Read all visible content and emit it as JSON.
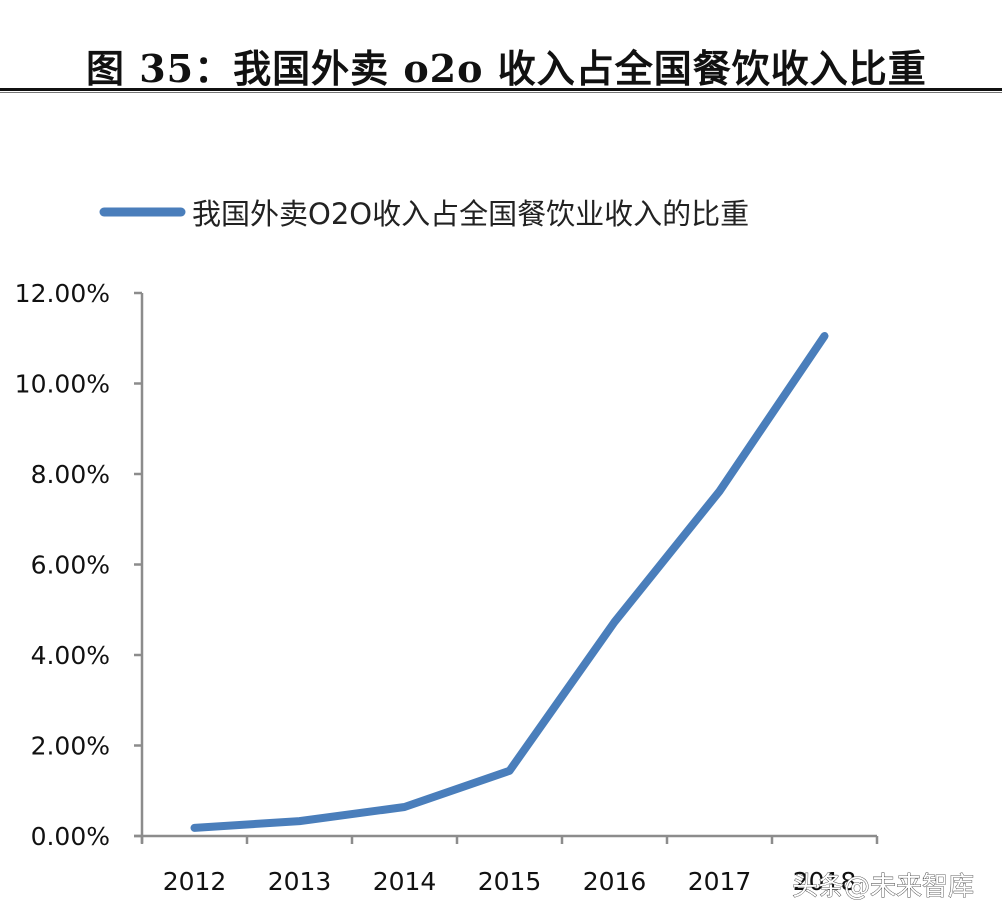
{
  "figure": {
    "title": "图 35：我国外卖 o2o 收入占全国餐饮收入比重"
  },
  "watermark": "头条@未来智库",
  "colors": {
    "series": "#4A7EBB",
    "axis": "#8C8C8C",
    "text": "#111111"
  },
  "chart_data": {
    "type": "line",
    "title": "图 35：我国外卖 o2o 收入占全国餐饮收入比重",
    "xlabel": "",
    "ylabel": "",
    "categories": [
      "2012",
      "2013",
      "2014",
      "2015",
      "2016",
      "2017",
      "2018"
    ],
    "series": [
      {
        "name": "我国外卖O2O收入占全国餐饮业收入的比重",
        "values": [
          0.18,
          0.33,
          0.64,
          1.44,
          4.73,
          7.62,
          11.05
        ],
        "unit": "%"
      }
    ],
    "ylim": [
      0,
      12
    ],
    "yticks": [
      0,
      2,
      4,
      6,
      8,
      10,
      12
    ],
    "ytick_labels": [
      "0.00%",
      "2.00%",
      "4.00%",
      "6.00%",
      "8.00%",
      "10.00%",
      "12.00%"
    ],
    "grid": false,
    "legend_position": "top"
  }
}
